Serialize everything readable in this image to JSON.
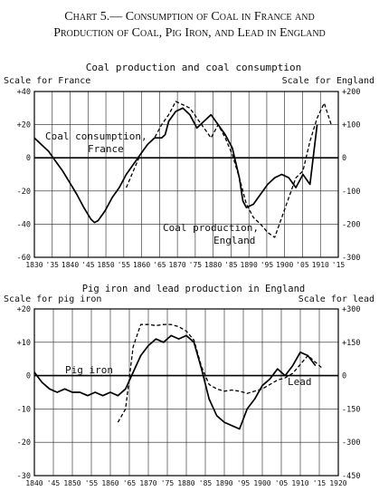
{
  "heading": {
    "line1": "Chart 5.— Consumption of Coal in France and",
    "line2": "Production of Coal, Pig Iron, and Lead in England"
  },
  "chart_data": [
    {
      "type": "line",
      "title": "Coal production and coal consumption",
      "left_scale_label": "Scale for France",
      "right_scale_label": "Scale for England",
      "x_tick_labels": [
        "1830",
        "'35",
        "1840",
        "'45",
        "1850",
        "'55",
        "1860",
        "'65",
        "1870",
        "'75",
        "1880",
        "'85",
        "1890",
        "'95",
        "1900",
        "'05",
        "1910",
        "'15"
      ],
      "xlim": [
        1830,
        1916
      ],
      "ylim": [
        -60,
        40
      ],
      "left_tick_labels": [
        "+40",
        "+20",
        "0",
        "-20",
        "-40",
        "-60"
      ],
      "right_ylim": [
        -300,
        200
      ],
      "right_tick_labels": [
        "+200",
        "+100",
        "0",
        "-100",
        "-200",
        "-300"
      ],
      "grid": true,
      "series": [
        {
          "name": "Coal consumption, France",
          "label_lines": [
            "Coal consumption,",
            "France"
          ],
          "axis": "left",
          "style": "solid",
          "x": [
            1830,
            1832,
            1834,
            1836,
            1838,
            1840,
            1842,
            1844,
            1846,
            1847,
            1848,
            1850,
            1852,
            1854,
            1856,
            1858,
            1860,
            1862,
            1864,
            1866,
            1867,
            1868,
            1870,
            1872,
            1874,
            1876,
            1878,
            1880,
            1882,
            1884,
            1886,
            1888,
            1889,
            1890,
            1892,
            1894,
            1896,
            1898,
            1900,
            1902,
            1904,
            1906,
            1908,
            1910
          ],
          "y": [
            12,
            8,
            4,
            -2,
            -8,
            -15,
            -22,
            -30,
            -37,
            -39,
            -38,
            -32,
            -24,
            -18,
            -10,
            -4,
            2,
            8,
            12,
            12,
            14,
            22,
            28,
            30,
            26,
            18,
            22,
            26,
            20,
            14,
            6,
            -12,
            -26,
            -30,
            -28,
            -22,
            -16,
            -12,
            -10,
            -12,
            -18,
            -10,
            -16,
            20
          ]
        },
        {
          "name": "Coal production, England",
          "label_lines": [
            "Coal production,",
            "England"
          ],
          "axis": "right",
          "style": "dashed",
          "x": [
            1856,
            1858,
            1860,
            1862,
            1864,
            1866,
            1868,
            1870,
            1872,
            1874,
            1876,
            1878,
            1880,
            1882,
            1884,
            1886,
            1888,
            1890,
            1892,
            1894,
            1896,
            1898,
            1900,
            1902,
            1904,
            1906,
            1908,
            1910,
            1912,
            1914
          ],
          "y": [
            -90,
            -40,
            10,
            40,
            60,
            100,
            130,
            170,
            160,
            150,
            120,
            90,
            60,
            100,
            60,
            10,
            -60,
            -140,
            -180,
            -200,
            -225,
            -240,
            -180,
            -120,
            -60,
            -40,
            50,
            120,
            165,
            100
          ]
        }
      ]
    },
    {
      "type": "line",
      "title": "Pig iron and lead production in England",
      "left_scale_label": "Scale for pig iron",
      "right_scale_label": "Scale for lead",
      "x_tick_labels": [
        "1840",
        "'45",
        "1850",
        "'55",
        "1860",
        "'65",
        "1870",
        "'75",
        "1880",
        "'85",
        "1890",
        "'95",
        "1900",
        "'05",
        "1910",
        "'15",
        "1920"
      ],
      "xlim": [
        1840,
        1920
      ],
      "ylim": [
        -30,
        20
      ],
      "left_tick_labels": [
        "+20",
        "+10",
        "0",
        "-10",
        "-20",
        "-30"
      ],
      "right_ylim": [
        -450,
        300
      ],
      "right_tick_labels": [
        "+300",
        "+150",
        "0",
        "-150",
        "-300",
        "-450"
      ],
      "grid": true,
      "series": [
        {
          "name": "Pig iron",
          "label_lines": [
            "Pig iron"
          ],
          "axis": "left",
          "style": "solid",
          "x": [
            1840,
            1842,
            1844,
            1846,
            1848,
            1850,
            1852,
            1854,
            1856,
            1858,
            1860,
            1862,
            1864,
            1866,
            1868,
            1870,
            1872,
            1874,
            1876,
            1878,
            1880,
            1882,
            1884,
            1886,
            1888,
            1890,
            1892,
            1894,
            1896,
            1898,
            1900,
            1902,
            1904,
            1906,
            1908,
            1910,
            1912,
            1914
          ],
          "y": [
            1,
            -2,
            -4,
            -5,
            -4,
            -5,
            -5,
            -6,
            -5,
            -6,
            -5,
            -6,
            -4,
            1,
            6,
            9,
            11,
            10,
            12,
            11,
            12,
            10,
            2,
            -7,
            -12,
            -14,
            -15,
            -16,
            -10,
            -7,
            -3,
            -1,
            2,
            0,
            3,
            7,
            6,
            3
          ]
        },
        {
          "name": "Lead",
          "label_lines": [
            "Lead"
          ],
          "axis": "right",
          "style": "dashed",
          "x": [
            1862,
            1864,
            1866,
            1868,
            1870,
            1872,
            1874,
            1876,
            1878,
            1880,
            1882,
            1884,
            1886,
            1888,
            1890,
            1892,
            1894,
            1896,
            1898,
            1900,
            1902,
            1904,
            1906,
            1908,
            1910,
            1912,
            1914,
            1916
          ],
          "y": [
            -210,
            -150,
            130,
            230,
            230,
            225,
            230,
            230,
            220,
            200,
            160,
            40,
            -40,
            -60,
            -70,
            -65,
            -70,
            -80,
            -70,
            -60,
            -40,
            -20,
            -10,
            10,
            50,
            90,
            60,
            30
          ]
        }
      ]
    }
  ]
}
